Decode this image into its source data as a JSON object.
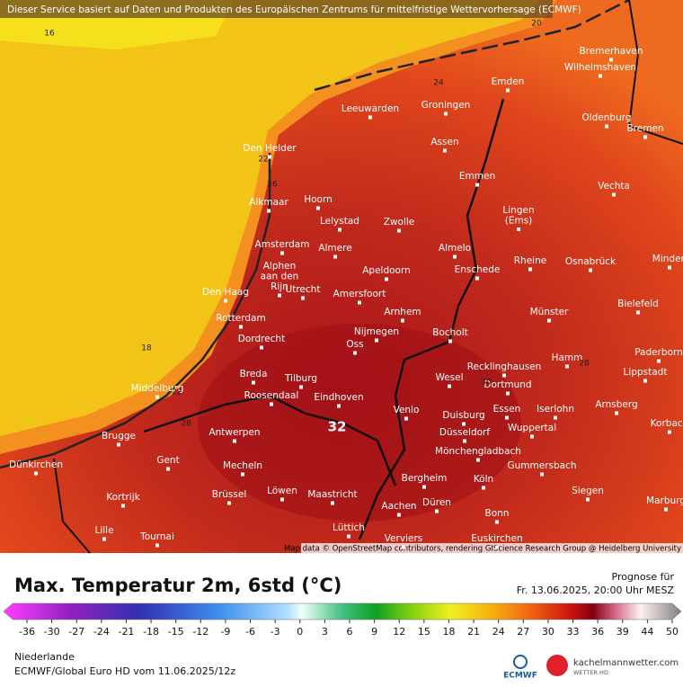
{
  "header": {
    "disclaimer": "Dieser Service basiert auf Daten und Produkten des Europäischen Zentrums für mittelfristige Wettervorhersage (ECMWF)"
  },
  "map": {
    "cities": [
      [
        "Bremerhaven"
      ],
      [
        "Wilhelmshaven"
      ],
      [
        "Emden"
      ],
      [
        "Leeuwarden"
      ],
      [
        "Groningen"
      ],
      [
        "Oldenburg"
      ],
      [
        "Bremen"
      ],
      [
        "Den Helder"
      ],
      [
        "Assen"
      ],
      [
        "Emmen"
      ],
      [
        "Vechta"
      ],
      [
        "Hoorn"
      ],
      [
        "Alkmaar"
      ],
      [
        "Lingen",
        "(Ems)"
      ],
      [
        "Lelystad"
      ],
      [
        "Zwolle"
      ],
      [
        "Amsterdam"
      ],
      [
        "Almere"
      ],
      [
        "Almelo"
      ],
      [
        "Rheine"
      ],
      [
        "Osnabrück"
      ],
      [
        "Minden"
      ],
      [
        "Alphen",
        "aan den",
        "Rijn"
      ],
      [
        "Apeldoorn"
      ],
      [
        "Enschede"
      ],
      [
        "Den Haag"
      ],
      [
        "Utrecht"
      ],
      [
        "Amersfoort"
      ],
      [
        "Bielefeld"
      ],
      [
        "Arnhem"
      ],
      [
        "Münster"
      ],
      [
        "Rotterdam"
      ],
      [
        "Nijmegen"
      ],
      [
        "Bocholt"
      ],
      [
        "Dordrecht"
      ],
      [
        "Oss"
      ],
      [
        "Paderborn"
      ],
      [
        "Hamm"
      ],
      [
        "Recklinghausen"
      ],
      [
        "Lippstadt"
      ],
      [
        "Breda"
      ],
      [
        "Tilburg"
      ],
      [
        "Wesel"
      ],
      [
        "Dortmund"
      ],
      [
        "Middelburg"
      ],
      [
        "Roosendaal"
      ],
      [
        "Eindhoven"
      ],
      [
        "Venlo"
      ],
      [
        "Essen"
      ],
      [
        "Iserlohn"
      ],
      [
        "Arnsberg"
      ],
      [
        "Duisburg"
      ],
      [
        "Korbach"
      ],
      [
        "Wuppertal"
      ],
      [
        "Antwerpen"
      ],
      [
        "Brugge"
      ],
      [
        "Düsseldorf"
      ],
      [
        "Mönchengladbach"
      ],
      [
        "Dünkirchen"
      ],
      [
        "Gent"
      ],
      [
        "Mecheln"
      ],
      [
        "Gummersbach"
      ],
      [
        "Bergheim"
      ],
      [
        "Köln"
      ],
      [
        "Kortrijk"
      ],
      [
        "Brüssel"
      ],
      [
        "Löwen"
      ],
      [
        "Maastricht"
      ],
      [
        "Siegen"
      ],
      [
        "Düren"
      ],
      [
        "Marburg"
      ],
      [
        "Aachen"
      ],
      [
        "Bonn"
      ],
      [
        "Lille"
      ],
      [
        "Tournai"
      ],
      [
        "Lüttich"
      ],
      [
        "Verviers"
      ],
      [
        "Euskirchen"
      ]
    ],
    "contour_labels": [
      16,
      20,
      24,
      22,
      26,
      18,
      22,
      28,
      30,
      28,
      32
    ],
    "attribution": "Map data © OpenStreetMap contributors, rendering GIScience Research Group @ Heidelberg University"
  },
  "footer": {
    "title": "Max. Temperatur 2m, 6std (°C)",
    "forecast_label": "Prognose für",
    "forecast_time": "Fr. 13.06.2025, 20:00 Uhr MESZ",
    "colorbar_ticks": [
      -36,
      -30,
      -27,
      -24,
      -21,
      -18,
      -15,
      -12,
      -9,
      -6,
      -3,
      0,
      3,
      6,
      9,
      12,
      15,
      18,
      21,
      24,
      27,
      30,
      33,
      36,
      39,
      44,
      50
    ],
    "region": "Niederlande",
    "model": "ECMWF/Global Euro HD vom  11.06.2025/12z",
    "logo_ecmwf": "ECMWF",
    "logo_site": "kachelmannwetter.com",
    "logo_sub": "WETTER HD"
  }
}
